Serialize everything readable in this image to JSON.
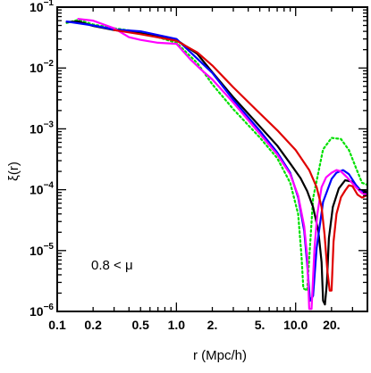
{
  "chart_data": {
    "type": "line",
    "title": "",
    "xlabel": "r (Mpc/h)",
    "ylabel": "ξ(r)",
    "xscale": "log",
    "yscale": "log",
    "xlim": [
      0.1,
      40
    ],
    "ylim": [
      1e-06,
      0.1
    ],
    "grid": false,
    "legend": "none",
    "x_tick_labels": [
      "0.1",
      "0.2",
      "0.5",
      "1.0",
      "2.",
      "5.",
      "10.0",
      "20."
    ],
    "x_tick_values": [
      0.1,
      0.2,
      0.5,
      1.0,
      2.0,
      5.0,
      10.0,
      20.0
    ],
    "y_tick_labels": [
      {
        "base": "10",
        "exp": "−6",
        "value": 1e-06
      },
      {
        "base": "10",
        "exp": "−5",
        "value": 1e-05
      },
      {
        "base": "10",
        "exp": "−4",
        "value": 0.0001
      },
      {
        "base": "10",
        "exp": "−3",
        "value": 0.001
      },
      {
        "base": "10",
        "exp": "−2",
        "value": 0.01
      },
      {
        "base": "10",
        "exp": "−1",
        "value": 0.1
      }
    ],
    "annotation": "0.8 < μ",
    "series": [
      {
        "color": "#00e000",
        "dash": "2,3",
        "x": [
          0.12,
          0.15,
          0.2,
          0.3,
          0.5,
          1.0,
          1.5,
          2.0,
          3.0,
          5.0,
          7.0,
          9.0,
          10.5,
          11.2,
          11.6,
          12.5,
          14.0,
          17.0,
          20.0,
          24.0,
          28.0,
          32.0,
          36.0,
          40.0
        ],
        "y": [
          0.055,
          0.062,
          0.052,
          0.045,
          0.039,
          0.026,
          0.012,
          0.0054,
          0.0021,
          0.00072,
          0.00033,
          0.00013,
          4e-05,
          8e-06,
          2.4e-06,
          2.2e-06,
          7.2e-05,
          0.00046,
          0.00071,
          0.00068,
          0.00045,
          0.00023,
          0.00013,
          0.00012
        ]
      },
      {
        "color": "#000000",
        "dash": "",
        "x": [
          0.12,
          0.15,
          0.2,
          0.3,
          0.5,
          1.0,
          1.5,
          2.0,
          3.0,
          5.0,
          7.0,
          9.0,
          11.0,
          12.5,
          14.0,
          15.5,
          16.5,
          17.0,
          17.6,
          18.3,
          19.0,
          20.5,
          23.0,
          26.0,
          30.0,
          35.0,
          40.0
        ],
        "y": [
          0.057,
          0.058,
          0.049,
          0.042,
          0.037,
          0.029,
          0.017,
          0.0085,
          0.0033,
          0.0011,
          0.00053,
          0.00027,
          0.000155,
          9.5e-05,
          5.2e-05,
          2.1e-05,
          6.5e-06,
          1.5e-06,
          1.3e-06,
          3e-06,
          1.6e-05,
          5.2e-05,
          0.000105,
          0.000143,
          0.000135,
          9.8e-05,
          9.3e-05
        ]
      },
      {
        "color": "#0000ff",
        "dash": "",
        "x": [
          0.12,
          0.2,
          0.3,
          0.5,
          1.0,
          2.0,
          3.0,
          5.0,
          7.0,
          9.0,
          10.5,
          11.8,
          12.5,
          13.2,
          14.0,
          15.0,
          17.0,
          20.0,
          22.0,
          25.0,
          28.0,
          32.0,
          36.0,
          40.0
        ],
        "y": [
          0.058,
          0.05,
          0.043,
          0.04,
          0.03,
          0.0083,
          0.003,
          0.00093,
          0.00041,
          0.00019,
          7.5e-05,
          2.1e-05,
          6e-06,
          1.5e-06,
          1.8e-06,
          1.1e-05,
          6.3e-05,
          0.00015,
          0.00019,
          0.00021,
          0.00018,
          0.00012,
          9.2e-05,
          8.5e-05
        ]
      },
      {
        "color": "#ff00ff",
        "dash": "",
        "x": [
          0.15,
          0.2,
          0.3,
          0.4,
          0.5,
          0.7,
          1.0,
          1.3,
          1.6,
          2.0,
          3.0,
          5.0,
          7.0,
          9.0,
          10.5,
          11.8,
          12.5,
          13.0,
          13.6,
          14.4,
          15.2,
          16.5,
          18.0,
          20.0,
          22.0,
          24.0,
          27.0,
          32.0,
          36.0,
          40.0
        ],
        "y": [
          0.064,
          0.06,
          0.045,
          0.032,
          0.029,
          0.026,
          0.025,
          0.014,
          0.0095,
          0.0065,
          0.0027,
          0.00083,
          0.00038,
          0.00018,
          8e-05,
          2.5e-05,
          8e-06,
          1.1e-06,
          1.1e-06,
          1.1e-05,
          4e-05,
          0.00011,
          0.00016,
          0.00019,
          0.00021,
          0.0002,
          0.00016,
          0.00011,
          8.8e-05,
          8.2e-05
        ]
      },
      {
        "color": "#e00000",
        "dash": "",
        "x": [
          0.3,
          0.5,
          1.0,
          1.5,
          2.0,
          3.0,
          5.0,
          7.0,
          10.0,
          13.0,
          15.0,
          16.5,
          17.5,
          18.5,
          19.3,
          20.0,
          20.8,
          22.0,
          24.0,
          26.0,
          28.0,
          30.0,
          33.0,
          36.0,
          40.0
        ],
        "y": [
          0.042,
          0.036,
          0.028,
          0.018,
          0.011,
          0.0048,
          0.0018,
          0.00095,
          0.00045,
          0.00021,
          0.00011,
          5.2e-05,
          1.8e-05,
          4.5e-06,
          2.2e-06,
          2.2e-06,
          1.4e-05,
          4e-05,
          7.5e-05,
          9.7e-05,
          0.000118,
          0.000114,
          8.3e-05,
          7.4e-05,
          8.2e-05
        ]
      }
    ]
  }
}
